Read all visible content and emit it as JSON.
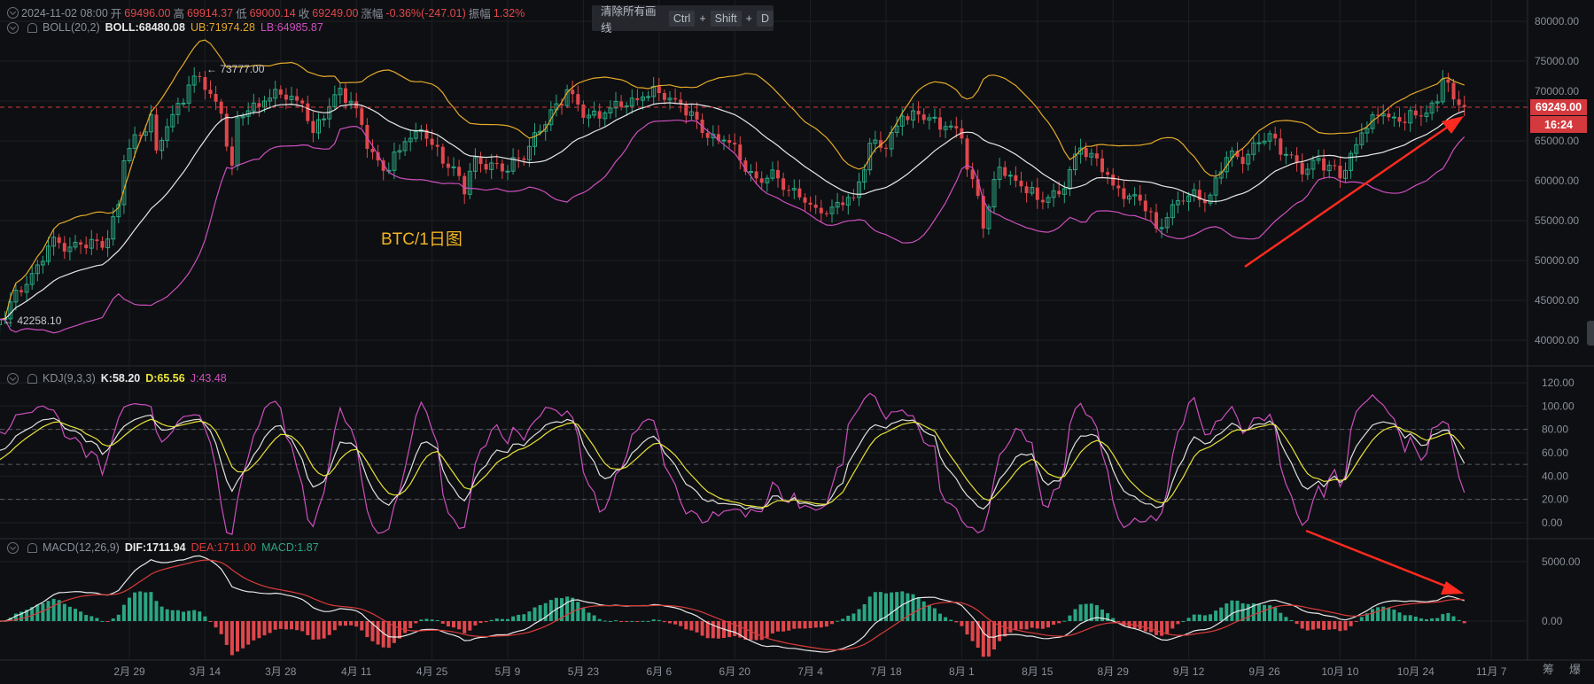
{
  "header": {
    "datetime": "2024-11-02 08:00",
    "open_label": "开",
    "open": "69496.00",
    "high_label": "高",
    "high": "69914.37",
    "low_label": "低",
    "low": "69000.14",
    "close_label": "收",
    "close": "69249.00",
    "change_label": "涨幅",
    "change": "-0.36%(-247.01)",
    "amplitude_label": "振幅",
    "amplitude": "1.32%"
  },
  "boll": {
    "name": "BOLL(20,2)",
    "mid": "BOLL:68480.08",
    "ub": "UB:71974.28",
    "lb": "LB:64985.87"
  },
  "kdj": {
    "name": "KDJ(9,3,3)",
    "k": "K:58.20",
    "d": "D:65.56",
    "j": "J:43.48"
  },
  "macd": {
    "name": "MACD(12,26,9)",
    "dif": "DIF:1711.94",
    "dea": "DEA:1711.00",
    "macd": "MACD:1.87"
  },
  "toolbar": {
    "clear_drawings": "清除所有画线",
    "key1": "Ctrl",
    "plus": "+",
    "key2": "Shift",
    "key3": "D"
  },
  "annotations": {
    "chart_title": "BTC/1日图",
    "high_marker": "← 73777.00",
    "low_marker": "← 42258.10"
  },
  "last_price": {
    "price": "69249.00",
    "countdown": "16:24"
  },
  "bottom_right": {
    "chips": "筹",
    "burst": "爆"
  },
  "colors": {
    "up": "#2aa683",
    "down": "#e0474c",
    "boll_mid": "#e8e8e8",
    "boll_ub": "#e3a92a",
    "boll_lb": "#cc4fbf",
    "kdj_k": "#e0e0e0",
    "kdj_d": "#e8e23a",
    "kdj_j": "#cc4fbf",
    "dif": "#e8e8e8",
    "dea": "#d93b3b",
    "arrow": "#ff2a1f",
    "title_text": "#f0b323"
  },
  "chart_data": {
    "type": "candlestick",
    "interval": "1D",
    "price_axis": [
      "80000.00",
      "75000.00",
      "70000.00",
      "65000.00",
      "60000.00",
      "55000.00",
      "50000.00",
      "45000.00",
      "40000.00"
    ],
    "kdj_axis": [
      "120.00",
      "100.00",
      "80.00",
      "60.00",
      "40.00",
      "20.00",
      "0.00"
    ],
    "macd_axis": [
      "5000.00",
      "0.00"
    ],
    "x_ticks": [
      "2月 29",
      "3月 14",
      "3月 28",
      "4月 11",
      "4月 25",
      "5月 9",
      "5月 23",
      "6月 6",
      "6月 20",
      "7月 4",
      "7月 18",
      "8月 1",
      "8月 15",
      "8月 29",
      "9月 12",
      "9月 26",
      "10月 10",
      "10月 24",
      "11月 7"
    ],
    "approx_closes": [
      [
        "2024-02-05",
        42600
      ],
      [
        "2024-02-10",
        47000
      ],
      [
        "2024-02-14",
        51800
      ],
      [
        "2024-02-20",
        52000
      ],
      [
        "2024-02-24",
        51600
      ],
      [
        "2024-02-27",
        57000
      ],
      [
        "2024-02-28",
        62500
      ],
      [
        "2024-03-04",
        68300
      ],
      [
        "2024-03-05",
        63800
      ],
      [
        "2024-03-08",
        68300
      ],
      [
        "2024-03-11",
        72000
      ],
      [
        "2024-03-13",
        73000
      ],
      [
        "2024-03-14",
        71400
      ],
      [
        "2024-03-17",
        68400
      ],
      [
        "2024-03-19",
        61900
      ],
      [
        "2024-03-20",
        67900
      ],
      [
        "2024-03-25",
        70000
      ],
      [
        "2024-03-28",
        70800
      ],
      [
        "2024-04-01",
        69700
      ],
      [
        "2024-04-03",
        66000
      ],
      [
        "2024-04-08",
        71600
      ],
      [
        "2024-04-12",
        67000
      ],
      [
        "2024-04-13",
        64000
      ],
      [
        "2024-04-17",
        61300
      ],
      [
        "2024-04-20",
        64900
      ],
      [
        "2024-04-23",
        66400
      ],
      [
        "2024-04-25",
        64500
      ],
      [
        "2024-04-30",
        60600
      ],
      [
        "2024-05-01",
        58300
      ],
      [
        "2024-05-03",
        62900
      ],
      [
        "2024-05-09",
        61200
      ],
      [
        "2024-05-15",
        66200
      ],
      [
        "2024-05-20",
        71400
      ],
      [
        "2024-05-23",
        67900
      ],
      [
        "2024-05-27",
        68500
      ],
      [
        "2024-06-03",
        70500
      ],
      [
        "2024-06-06",
        71000
      ],
      [
        "2024-06-10",
        69600
      ],
      [
        "2024-06-14",
        66000
      ],
      [
        "2024-06-18",
        65100
      ],
      [
        "2024-06-24",
        60300
      ],
      [
        "2024-06-28",
        60300
      ],
      [
        "2024-07-04",
        57000
      ],
      [
        "2024-07-05",
        56600
      ],
      [
        "2024-07-08",
        56700
      ],
      [
        "2024-07-12",
        57900
      ],
      [
        "2024-07-15",
        64700
      ],
      [
        "2024-07-18",
        64000
      ],
      [
        "2024-07-21",
        68100
      ],
      [
        "2024-07-26",
        67900
      ],
      [
        "2024-07-29",
        66800
      ],
      [
        "2024-08-01",
        65300
      ],
      [
        "2024-08-02",
        61400
      ],
      [
        "2024-08-04",
        58100
      ],
      [
        "2024-08-05",
        54000
      ],
      [
        "2024-08-08",
        61700
      ],
      [
        "2024-08-12",
        59300
      ],
      [
        "2024-08-15",
        57600
      ],
      [
        "2024-08-20",
        59000
      ],
      [
        "2024-08-23",
        64100
      ],
      [
        "2024-08-26",
        62800
      ],
      [
        "2024-08-29",
        59400
      ],
      [
        "2024-09-03",
        57500
      ],
      [
        "2024-09-06",
        54000
      ],
      [
        "2024-09-09",
        57000
      ],
      [
        "2024-09-12",
        58100
      ],
      [
        "2024-09-16",
        58200
      ],
      [
        "2024-09-19",
        62900
      ],
      [
        "2024-09-23",
        63300
      ],
      [
        "2024-09-27",
        65900
      ],
      [
        "2024-09-30",
        63300
      ],
      [
        "2024-10-03",
        60800
      ],
      [
        "2024-10-06",
        62800
      ],
      [
        "2024-10-10",
        60300
      ],
      [
        "2024-10-14",
        66000
      ],
      [
        "2024-10-18",
        68400
      ],
      [
        "2024-10-21",
        67400
      ],
      [
        "2024-10-24",
        68200
      ],
      [
        "2024-10-28",
        69900
      ],
      [
        "2024-10-29",
        72700
      ],
      [
        "2024-10-30",
        72300
      ],
      [
        "2024-10-31",
        70200
      ],
      [
        "2024-11-01",
        69500
      ],
      [
        "2024-11-02",
        69249
      ]
    ],
    "dashed_levels_kdj": [
      80,
      50,
      20
    ],
    "last_price_line": 69249
  }
}
